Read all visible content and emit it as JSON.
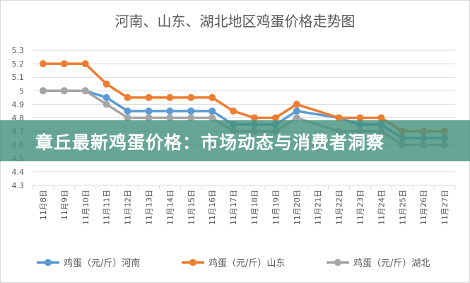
{
  "banner": {
    "text": "章丘最新鸡蛋价格：市场动态与消费者洞察"
  },
  "chart_data": {
    "type": "line",
    "title": "河南、山东、湖北地区鸡蛋价格走势图",
    "categories": [
      "11月8日",
      "11月9日",
      "11月10日",
      "11月11日",
      "11月12日",
      "11月13日",
      "11月14日",
      "11月15日",
      "11月16日",
      "11月17日",
      "11月18日",
      "11月19日",
      "11月20日",
      "11月21日",
      "11月22日",
      "11月23日",
      "11月24日",
      "11月25日",
      "11月26日",
      "11月27日"
    ],
    "ylim": [
      4.3,
      5.3
    ],
    "yticks": [
      "4.3",
      "4.4",
      "4.5",
      "4.6",
      "4.7",
      "4.8",
      "4.9",
      "5",
      "5.1",
      "5.2",
      "5.3"
    ],
    "grid": true,
    "legend": "bottom",
    "series": [
      {
        "name": "鸡蛋（元/斤）河南",
        "color": "#5b9bd5",
        "values": [
          5,
          5,
          5,
          4.95,
          4.85,
          4.85,
          4.85,
          4.85,
          4.85,
          4.75,
          4.75,
          4.75,
          4.85,
          null,
          4.8,
          4.75,
          4.75,
          4.65,
          4.65,
          4.65
        ]
      },
      {
        "name": "鸡蛋（元/斤）山东",
        "color": "#ed7d31",
        "values": [
          5.2,
          5.2,
          5.2,
          5.05,
          4.95,
          4.95,
          4.95,
          4.95,
          4.95,
          4.85,
          4.8,
          4.8,
          4.9,
          null,
          4.8,
          4.8,
          4.8,
          4.7,
          4.7,
          4.7
        ]
      },
      {
        "name": "鸡蛋（元/斤）湖北",
        "color": "#a5a5a5",
        "values": [
          5,
          5,
          5,
          4.9,
          4.8,
          4.8,
          4.8,
          4.8,
          4.8,
          4.7,
          4.7,
          4.7,
          4.8,
          null,
          4.7,
          4.7,
          4.7,
          4.6,
          4.6,
          4.6
        ]
      }
    ]
  }
}
